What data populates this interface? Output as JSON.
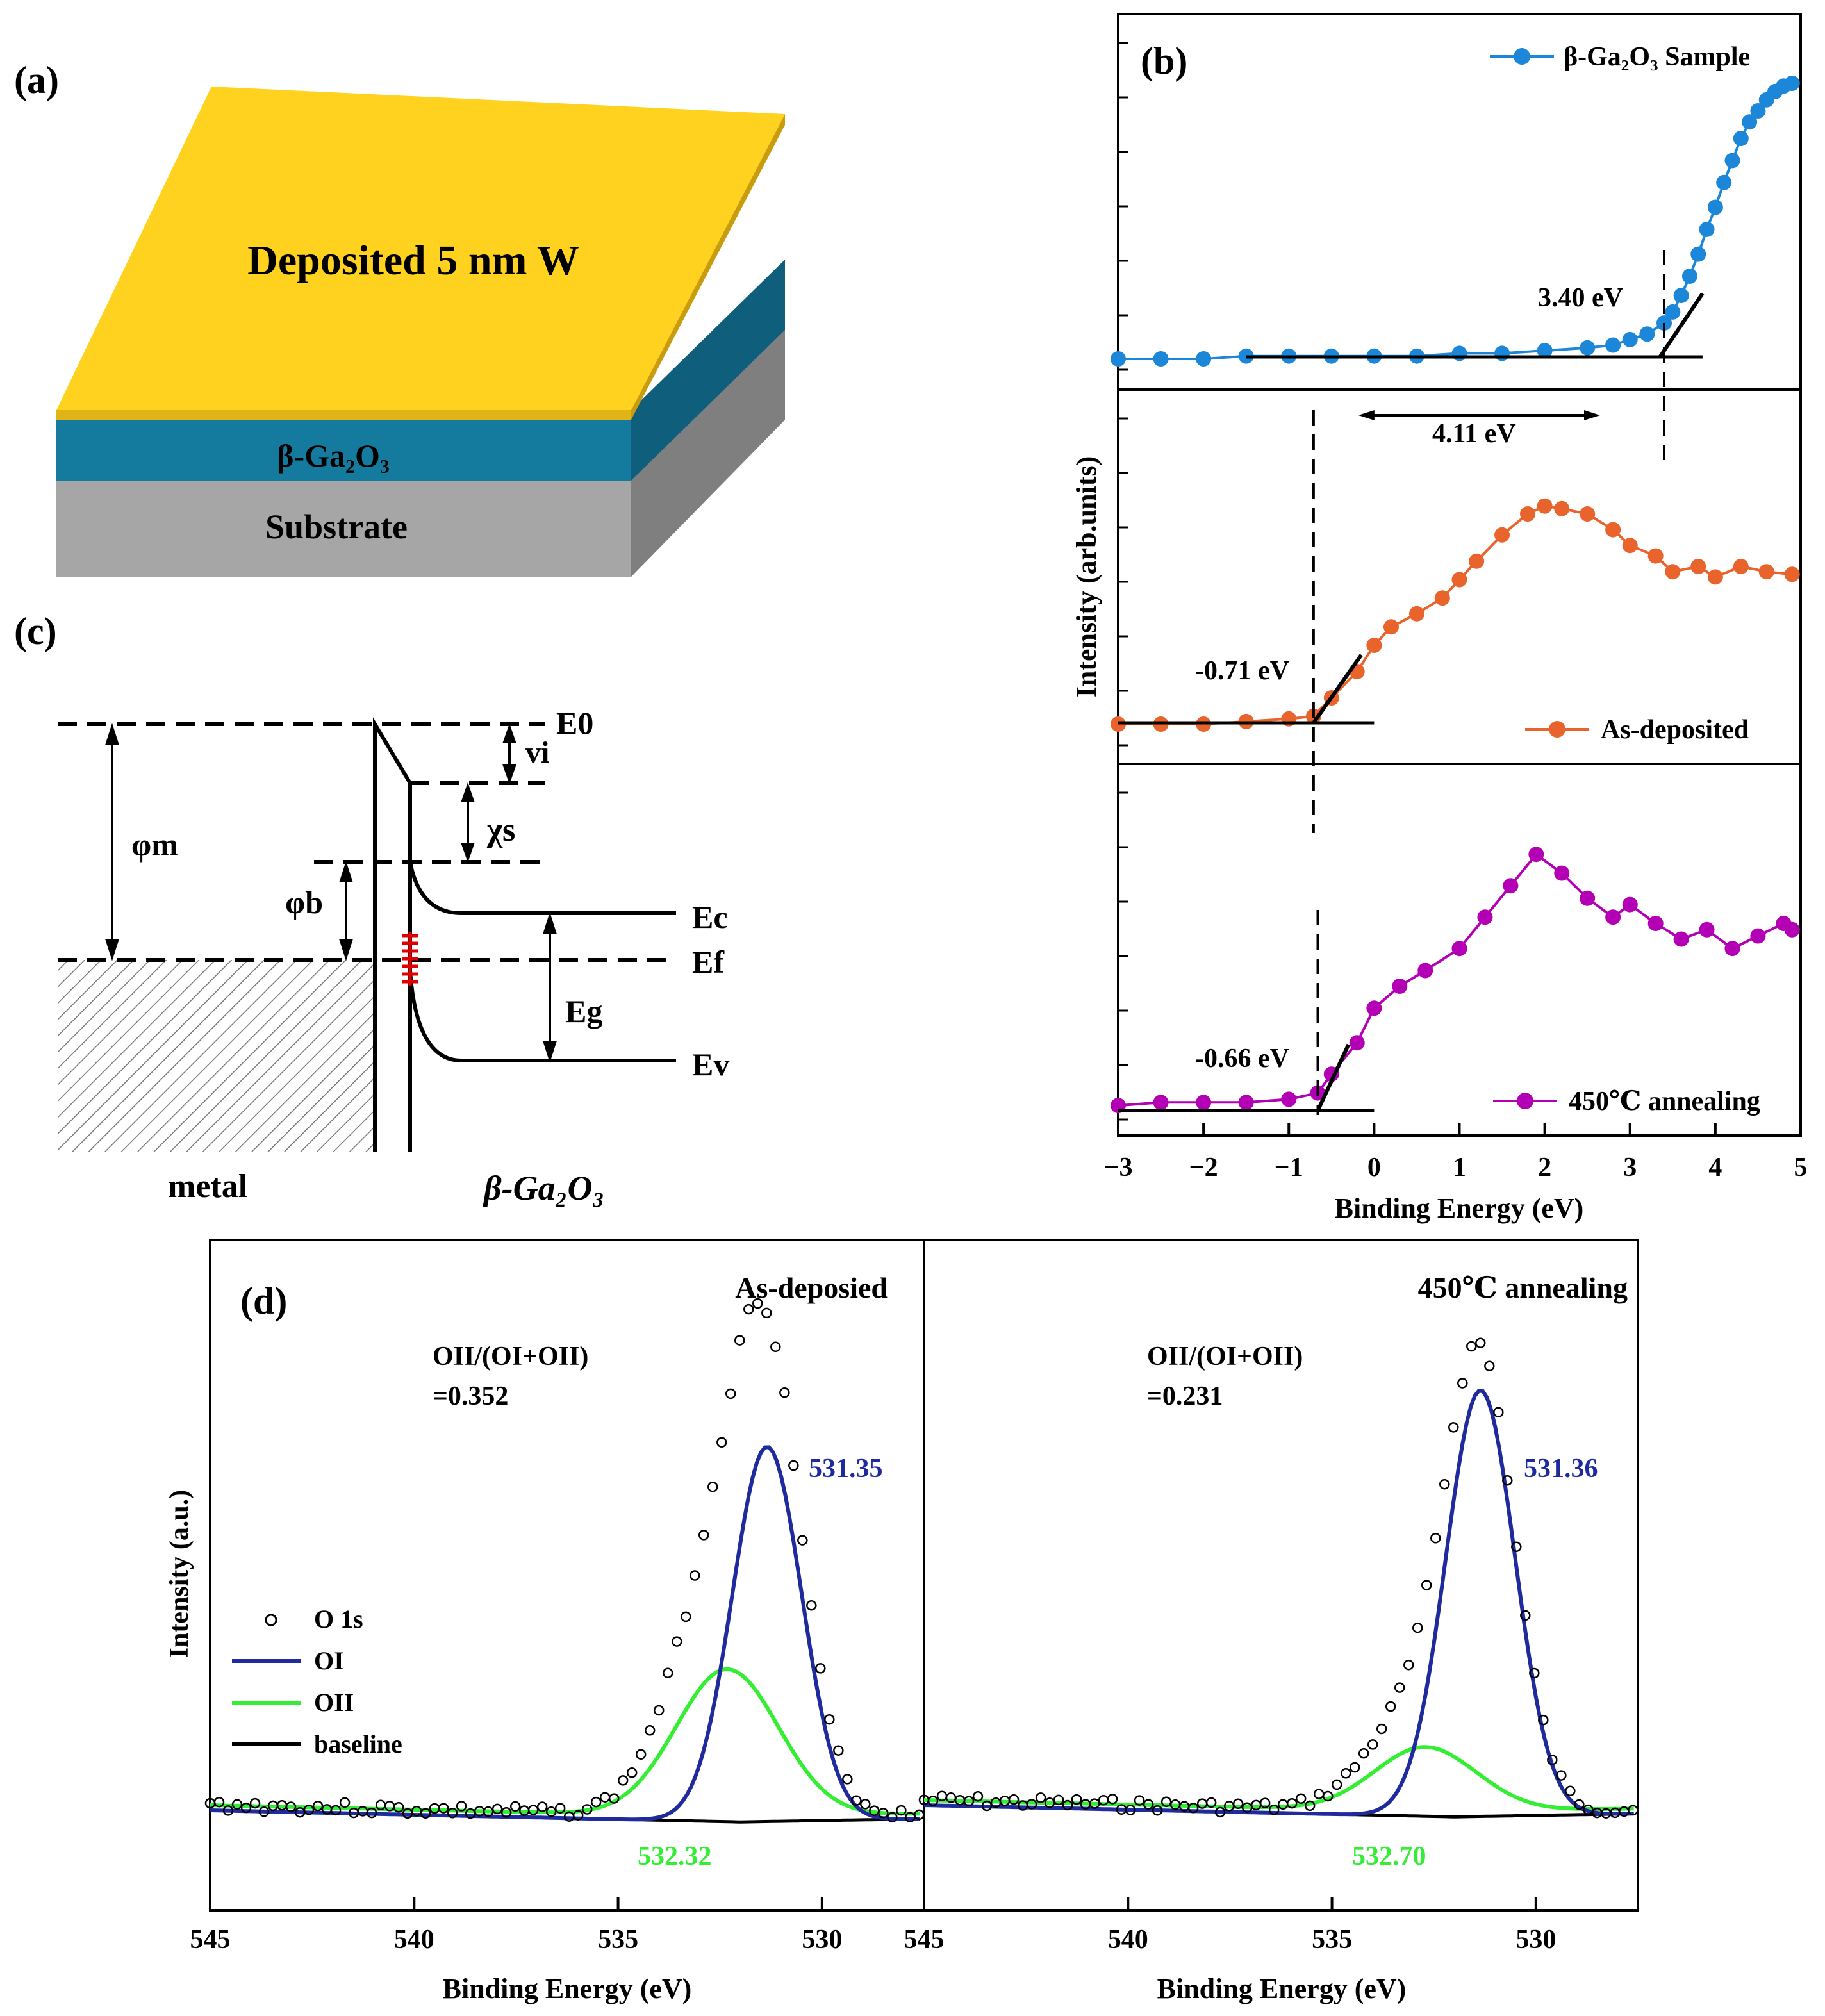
{
  "panels": {
    "a": {
      "label": "(a)",
      "top_layer": "Deposited 5 nm W",
      "middle_layer": "β-Ga₂O₃",
      "bottom_layer": "Substrate",
      "colors": {
        "top": "#FFD21F",
        "middle": "#147A9E",
        "bottom": "#A6A6A6"
      }
    },
    "c": {
      "label": "(c)",
      "levels": {
        "e0": "E0",
        "ec": "Ec",
        "ef": "Ef",
        "ev": "Ev"
      },
      "symbols": {
        "phi_m": "φm",
        "phi_b": "φb",
        "vi": "vi",
        "chi_s": "χs",
        "eg": "Eg"
      },
      "metal_label": "metal",
      "semi_label": "β-Ga₂O₃"
    }
  },
  "chart_data": [
    {
      "id": "b",
      "type": "line",
      "label": "(b)",
      "xlabel": "Binding Energy (eV)",
      "ylabel": "Intensity (arb.units)",
      "xlim": [
        -3,
        5
      ],
      "xticks": [
        "-3",
        "-2",
        "-1",
        "0",
        "1",
        "2",
        "3",
        "4",
        "5"
      ],
      "series": [
        {
          "name": "β-Ga₂O₃ Sample",
          "color": "#1C86D8",
          "x": [
            -3,
            -2.5,
            -2,
            -1.5,
            -1,
            -0.5,
            0,
            0.5,
            1,
            1.5,
            2,
            2.5,
            2.8,
            3.0,
            3.2,
            3.4,
            3.5,
            3.6,
            3.7,
            3.8,
            3.9,
            4.0,
            4.1,
            4.2,
            4.3,
            4.4,
            4.5,
            4.6,
            4.7,
            4.8,
            4.9
          ],
          "y": [
            0,
            0,
            0,
            0.01,
            0.01,
            0.01,
            0.01,
            0.01,
            0.02,
            0.02,
            0.03,
            0.04,
            0.05,
            0.07,
            0.09,
            0.13,
            0.17,
            0.23,
            0.3,
            0.38,
            0.47,
            0.55,
            0.64,
            0.72,
            0.8,
            0.86,
            0.9,
            0.94,
            0.97,
            0.99,
            1.0
          ]
        },
        {
          "name": "As-deposited",
          "color": "#E8642C",
          "x": [
            -3,
            -2.5,
            -2,
            -1.5,
            -1,
            -0.71,
            -0.5,
            -0.2,
            0,
            0.2,
            0.5,
            0.8,
            1.0,
            1.2,
            1.5,
            1.8,
            2.0,
            2.2,
            2.5,
            2.8,
            3.0,
            3.3,
            3.5,
            3.8,
            4.0,
            4.3,
            4.6,
            4.9
          ],
          "y": [
            0,
            0,
            0,
            0.01,
            0.02,
            0.03,
            0.1,
            0.2,
            0.3,
            0.37,
            0.42,
            0.48,
            0.55,
            0.62,
            0.72,
            0.8,
            0.83,
            0.82,
            0.8,
            0.74,
            0.68,
            0.64,
            0.58,
            0.6,
            0.56,
            0.6,
            0.58,
            0.57
          ]
        },
        {
          "name": "450℃ annealing",
          "color": "#B400B4",
          "x": [
            -3,
            -2.5,
            -2,
            -1.5,
            -1,
            -0.66,
            -0.5,
            -0.2,
            0,
            0.3,
            0.6,
            1.0,
            1.3,
            1.6,
            1.9,
            2.2,
            2.5,
            2.8,
            3.0,
            3.3,
            3.6,
            3.9,
            4.2,
            4.5,
            4.8,
            4.9
          ],
          "y": [
            0.02,
            0.03,
            0.03,
            0.03,
            0.04,
            0.06,
            0.12,
            0.22,
            0.33,
            0.4,
            0.45,
            0.52,
            0.62,
            0.72,
            0.82,
            0.76,
            0.68,
            0.62,
            0.66,
            0.6,
            0.55,
            0.58,
            0.52,
            0.56,
            0.6,
            0.58
          ]
        }
      ],
      "annotations": {
        "vbm1": "3.40 eV",
        "diff": "4.11 eV",
        "vbm2": "-0.71 eV",
        "vbm3": "-0.66 eV"
      }
    },
    {
      "id": "d-left",
      "type": "line",
      "label": "(d)",
      "title": "As-deposied",
      "xlabel": "Binding Energy (eV)",
      "ylabel": "Intensity (a.u.)",
      "xlim": [
        545,
        527.5
      ],
      "xticks": [
        "545",
        "540",
        "535",
        "530"
      ],
      "ratio_label": "OII/(OI+OII)",
      "ratio_value": "=0.352",
      "peak_oi": "531.35",
      "peak_oii": "532.32",
      "peak_oi_ev": 531.35,
      "peak_oii_ev": 532.32,
      "legend": [
        "O 1s",
        "OI",
        "OII",
        "baseline"
      ],
      "colors": {
        "oi": "#1F2A9C",
        "oii": "#33EE33",
        "baseline": "#000000"
      }
    },
    {
      "id": "d-right",
      "type": "line",
      "title": "450℃ annealing",
      "xlabel": "Binding Energy (eV)",
      "xlim": [
        545,
        527.5
      ],
      "xticks": [
        "545",
        "540",
        "535",
        "530"
      ],
      "ratio_label": "OII/(OI+OII)",
      "ratio_value": "=0.231",
      "peak_oi": "531.36",
      "peak_oii": "532.70",
      "peak_oi_ev": 531.36,
      "peak_oii_ev": 532.7,
      "colors": {
        "oi": "#1F2A9C",
        "oii": "#33EE33",
        "baseline": "#000000"
      }
    }
  ]
}
